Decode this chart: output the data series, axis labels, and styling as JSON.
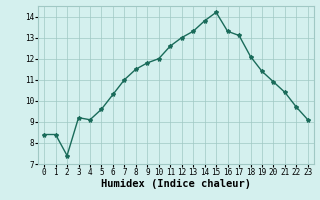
{
  "xlabel": "Humidex (Indice chaleur)",
  "x": [
    0,
    1,
    2,
    3,
    4,
    5,
    6,
    7,
    8,
    9,
    10,
    11,
    12,
    13,
    14,
    15,
    16,
    17,
    18,
    19,
    20,
    21,
    22,
    23
  ],
  "y": [
    8.4,
    8.4,
    7.4,
    9.2,
    9.1,
    9.6,
    10.3,
    11.0,
    11.5,
    11.8,
    12.0,
    12.6,
    13.0,
    13.3,
    13.8,
    14.2,
    13.3,
    13.1,
    12.1,
    11.4,
    10.9,
    10.4,
    9.7,
    9.1
  ],
  "line_color": "#1a6b5a",
  "marker": "*",
  "marker_size": 3,
  "bg_color": "#d4f0ee",
  "grid_color": "#a0c8c4",
  "ylim": [
    7,
    14.5
  ],
  "xlim": [
    -0.5,
    23.5
  ],
  "yticks": [
    7,
    8,
    9,
    10,
    11,
    12,
    13,
    14
  ],
  "xticks": [
    0,
    1,
    2,
    3,
    4,
    5,
    6,
    7,
    8,
    9,
    10,
    11,
    12,
    13,
    14,
    15,
    16,
    17,
    18,
    19,
    20,
    21,
    22,
    23
  ],
  "tick_fontsize": 5.5,
  "xlabel_fontsize": 7.5,
  "line_width": 1.0
}
